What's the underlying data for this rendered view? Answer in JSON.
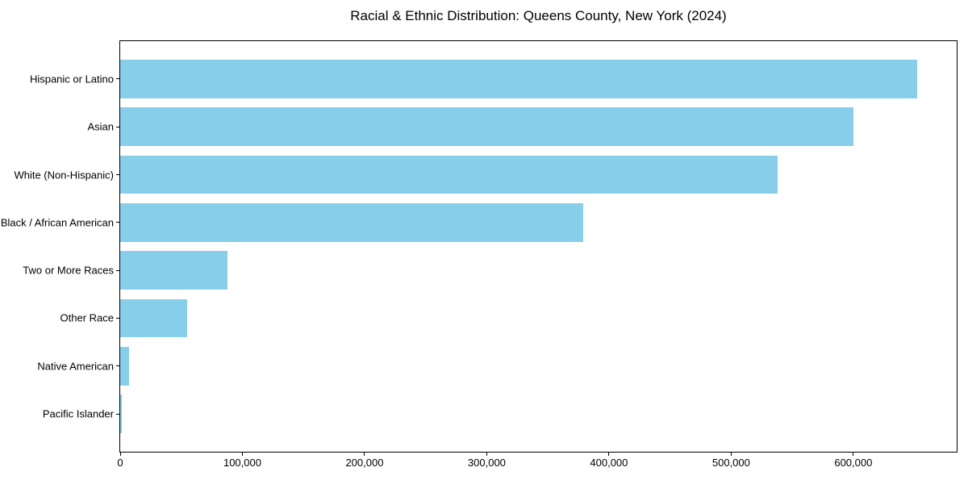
{
  "chart_data": {
    "type": "bar",
    "orientation": "horizontal",
    "title": "Racial & Ethnic Distribution: Queens County, New York (2024)",
    "categories": [
      "Hispanic or Latino",
      "Asian",
      "White (Non-Hispanic)",
      "Black / African American",
      "Two or More Races",
      "Other Race",
      "Native American",
      "Pacific Islander"
    ],
    "values": [
      652000,
      600000,
      538000,
      379000,
      87500,
      55000,
      7200,
      1600
    ],
    "xlabel": "",
    "ylabel": "",
    "xlim": [
      0,
      684600
    ],
    "xticks": [
      0,
      100000,
      200000,
      300000,
      400000,
      500000,
      600000
    ],
    "xtick_labels": [
      "0",
      "100,000",
      "200,000",
      "300,000",
      "400,000",
      "500,000",
      "600,000"
    ],
    "bar_color": "#87CEEB",
    "background_color": "#ffffff",
    "spine_color": "#000000",
    "grid": false,
    "legend": null
  }
}
